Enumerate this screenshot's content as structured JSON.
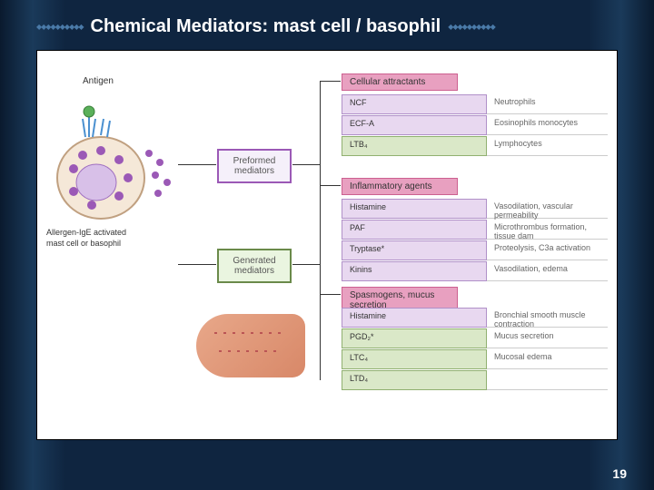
{
  "title": "Chemical Mediators: mast cell /  basophil",
  "page_number": "19",
  "diagram": {
    "antigen_label": "Antigen",
    "cell_caption": "Allergen-IgE activated\nmast cell or basophil",
    "mediator_boxes": {
      "preformed": "Preformed\nmediators",
      "generated": "Generated\nmediators"
    },
    "categories": [
      {
        "header": "Cellular attractants",
        "rows": [
          {
            "name": "NCF",
            "effect": "Neutrophils",
            "style": "purple"
          },
          {
            "name": "ECF-A",
            "effect": "Eosinophils monocytes",
            "style": "purple"
          },
          {
            "name": "LTB₄",
            "effect": "Lymphocytes",
            "style": "green"
          }
        ]
      },
      {
        "header": "Inflammatory agents",
        "rows": [
          {
            "name": "Histamine",
            "effect": "Vasodilation, vascular permeability",
            "style": "purple"
          },
          {
            "name": "PAF",
            "effect": "Microthrombus formation, tissue dam",
            "style": "purple"
          },
          {
            "name": "Tryptase*",
            "effect": "Proteolysis, C3a activation",
            "style": "purple"
          },
          {
            "name": "Kinins",
            "effect": "Vasodilation, edema",
            "style": "purple"
          }
        ]
      },
      {
        "header": "Spasmogens, mucus secretion",
        "rows": [
          {
            "name": "Histamine",
            "effect": "Bronchial smooth muscle contraction",
            "style": "purple"
          },
          {
            "name": "PGD₂*",
            "effect": "Mucus secretion",
            "style": "green"
          },
          {
            "name": "LTC₄",
            "effect": "Mucosal edema",
            "style": "green"
          },
          {
            "name": "LTD₄",
            "effect": "",
            "style": "green"
          }
        ]
      }
    ]
  },
  "colors": {
    "bg_dark": "#0f2540",
    "pink_header": "#e8a0c0",
    "purple_box": "#e8d8f0",
    "green_box": "#dae8c8",
    "purple_border": "#9b59b6",
    "green_border": "#6a8a4a"
  }
}
